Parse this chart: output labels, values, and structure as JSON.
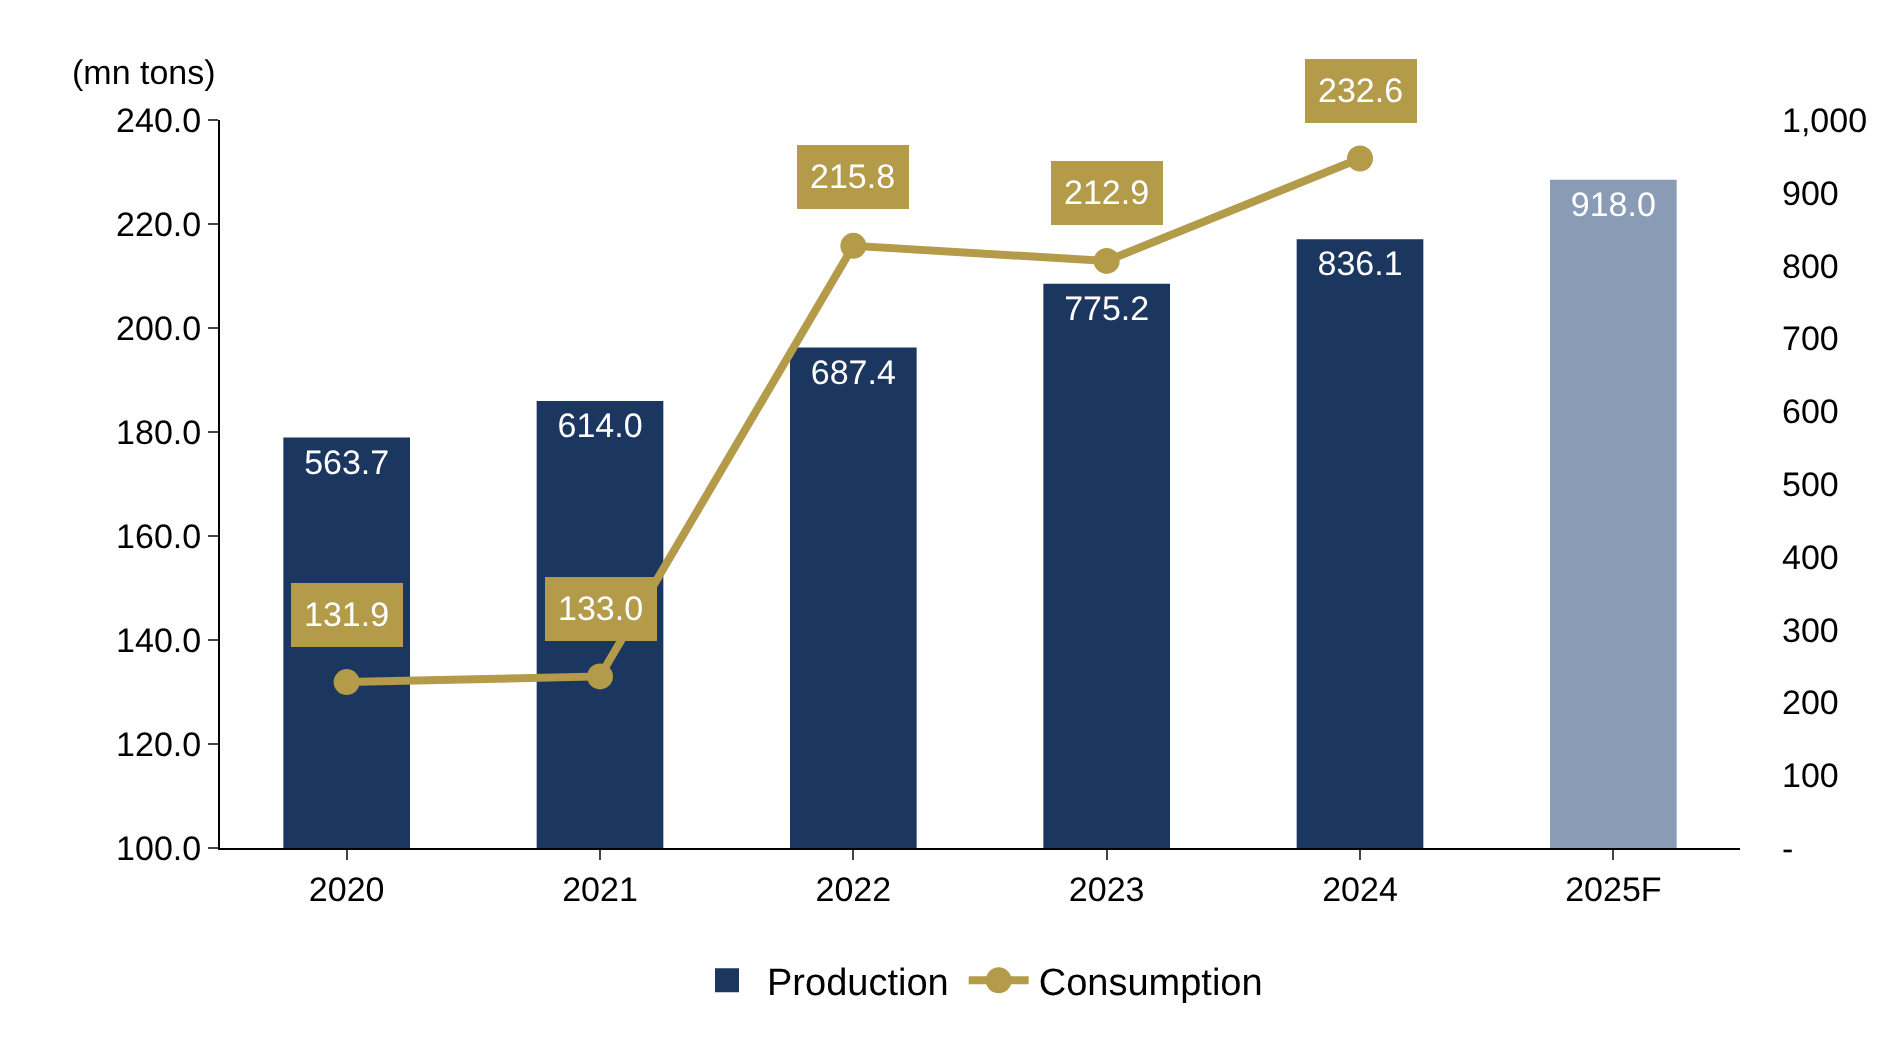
{
  "chart_data": {
    "type": "bar",
    "categories": [
      "2020",
      "2021",
      "2022",
      "2023",
      "2024",
      "2025F"
    ],
    "ylabel": "(mn tons)",
    "ylim": [
      100,
      240
    ],
    "yticks": [
      {
        "value": 100,
        "label": "100.0"
      },
      {
        "value": 120,
        "label": "120.0"
      },
      {
        "value": 140,
        "label": "140.0"
      },
      {
        "value": 160,
        "label": "160.0"
      },
      {
        "value": 180,
        "label": "180.0"
      },
      {
        "value": 200,
        "label": "200.0"
      },
      {
        "value": 220,
        "label": "220.0"
      },
      {
        "value": 240,
        "label": "240.0"
      }
    ],
    "y2lim": [
      0,
      1000
    ],
    "y2ticks": [
      {
        "value": 0,
        "label": "-"
      },
      100,
      200,
      300,
      400,
      500,
      600,
      700,
      800,
      900,
      {
        "value": 1000,
        "label": "1,000"
      }
    ],
    "series": [
      {
        "name": "Production",
        "axis": "y2",
        "color": "#1b365f",
        "colors": [
          "#1b365f",
          "#1b365f",
          "#1b365f",
          "#1b365f",
          "#1b365f",
          "#8a9bb5"
        ],
        "values": [
          563.7,
          614.0,
          687.4,
          775.2,
          836.1,
          918.0
        ],
        "value_labels": [
          "563.7",
          "614.0",
          "687.4",
          "775.2",
          "836.1",
          "918.0"
        ]
      },
      {
        "name": "Consumption",
        "type": "line",
        "axis": "y",
        "color": "#b39b4a",
        "values": [
          131.9,
          133.0,
          215.8,
          212.9,
          232.6,
          null
        ],
        "value_labels": [
          "131.9",
          "133.0",
          "215.8",
          "212.9",
          "232.6",
          null
        ]
      }
    ],
    "marker": "circle",
    "line_style": "solid",
    "legend": "bottom"
  }
}
